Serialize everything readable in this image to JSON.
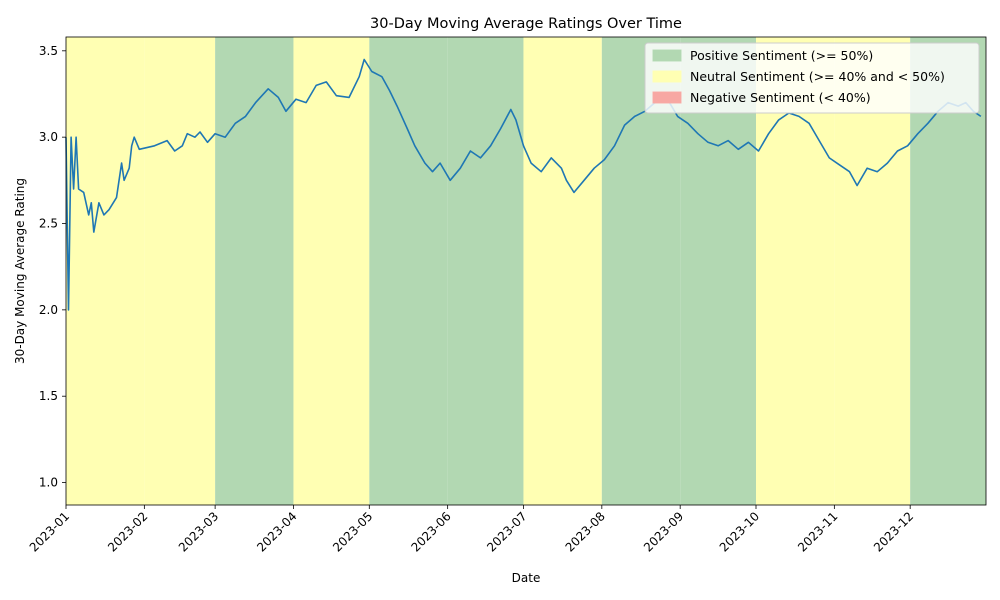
{
  "chart_data": {
    "type": "line",
    "title": "30-Day Moving Average Ratings Over Time",
    "xlabel": "Date",
    "ylabel": "30-Day Moving Average Rating",
    "xlim": [
      "2023-01-01",
      "2023-12-31"
    ],
    "ylim": [
      0.87,
      3.58
    ],
    "grid": false,
    "legend_position": "upper right",
    "x_ticks": [
      "2023-01",
      "2023-02",
      "2023-03",
      "2023-04",
      "2023-05",
      "2023-06",
      "2023-07",
      "2023-08",
      "2023-09",
      "2023-10",
      "2023-11",
      "2023-12"
    ],
    "y_ticks": [
      "1.0",
      "1.5",
      "2.0",
      "2.5",
      "3.0",
      "3.5"
    ],
    "legend": [
      {
        "label": "Positive Sentiment (>= 50%)",
        "color": "#b2d8b2"
      },
      {
        "label": "Neutral Sentiment (>= 40% and < 50%)",
        "color": "#ffffb3"
      },
      {
        "label": "Negative Sentiment (< 40%)",
        "color": "#f7a8a3"
      }
    ],
    "sentiment_bands": [
      {
        "month": "2023-01",
        "sentiment": "neutral"
      },
      {
        "month": "2023-02",
        "sentiment": "neutral"
      },
      {
        "month": "2023-03",
        "sentiment": "positive"
      },
      {
        "month": "2023-04",
        "sentiment": "neutral"
      },
      {
        "month": "2023-05",
        "sentiment": "positive"
      },
      {
        "month": "2023-06",
        "sentiment": "positive"
      },
      {
        "month": "2023-07",
        "sentiment": "neutral"
      },
      {
        "month": "2023-08",
        "sentiment": "positive"
      },
      {
        "month": "2023-09",
        "sentiment": "positive"
      },
      {
        "month": "2023-10",
        "sentiment": "neutral"
      },
      {
        "month": "2023-11",
        "sentiment": "neutral"
      },
      {
        "month": "2023-12",
        "sentiment": "positive"
      }
    ],
    "series": [
      {
        "color": "#1f77b4",
        "points": [
          [
            "2023-01-01",
            3.0
          ],
          [
            "2023-01-02",
            2.0
          ],
          [
            "2023-01-03",
            3.0
          ],
          [
            "2023-01-04",
            2.7
          ],
          [
            "2023-01-05",
            3.0
          ],
          [
            "2023-01-06",
            2.7
          ],
          [
            "2023-01-08",
            2.68
          ],
          [
            "2023-01-10",
            2.55
          ],
          [
            "2023-01-11",
            2.62
          ],
          [
            "2023-01-12",
            2.45
          ],
          [
            "2023-01-14",
            2.62
          ],
          [
            "2023-01-16",
            2.55
          ],
          [
            "2023-01-18",
            2.58
          ],
          [
            "2023-01-21",
            2.65
          ],
          [
            "2023-01-23",
            2.85
          ],
          [
            "2023-01-24",
            2.75
          ],
          [
            "2023-01-26",
            2.82
          ],
          [
            "2023-01-27",
            2.95
          ],
          [
            "2023-01-28",
            3.0
          ],
          [
            "2023-01-30",
            2.93
          ],
          [
            "2023-02-05",
            2.95
          ],
          [
            "2023-02-10",
            2.98
          ],
          [
            "2023-02-13",
            2.92
          ],
          [
            "2023-02-16",
            2.95
          ],
          [
            "2023-02-18",
            3.02
          ],
          [
            "2023-02-21",
            3.0
          ],
          [
            "2023-02-23",
            3.03
          ],
          [
            "2023-02-26",
            2.97
          ],
          [
            "2023-03-01",
            3.02
          ],
          [
            "2023-03-05",
            3.0
          ],
          [
            "2023-03-09",
            3.08
          ],
          [
            "2023-03-13",
            3.12
          ],
          [
            "2023-03-17",
            3.2
          ],
          [
            "2023-03-22",
            3.28
          ],
          [
            "2023-03-26",
            3.23
          ],
          [
            "2023-03-29",
            3.15
          ],
          [
            "2023-04-02",
            3.22
          ],
          [
            "2023-04-06",
            3.2
          ],
          [
            "2023-04-10",
            3.3
          ],
          [
            "2023-04-14",
            3.32
          ],
          [
            "2023-04-18",
            3.24
          ],
          [
            "2023-04-23",
            3.23
          ],
          [
            "2023-04-27",
            3.35
          ],
          [
            "2023-04-29",
            3.45
          ],
          [
            "2023-05-02",
            3.38
          ],
          [
            "2023-05-06",
            3.35
          ],
          [
            "2023-05-09",
            3.27
          ],
          [
            "2023-05-12",
            3.18
          ],
          [
            "2023-05-16",
            3.05
          ],
          [
            "2023-05-19",
            2.95
          ],
          [
            "2023-05-23",
            2.85
          ],
          [
            "2023-05-26",
            2.8
          ],
          [
            "2023-05-29",
            2.85
          ],
          [
            "2023-06-02",
            2.75
          ],
          [
            "2023-06-06",
            2.82
          ],
          [
            "2023-06-10",
            2.92
          ],
          [
            "2023-06-14",
            2.88
          ],
          [
            "2023-06-18",
            2.95
          ],
          [
            "2023-06-22",
            3.05
          ],
          [
            "2023-06-26",
            3.16
          ],
          [
            "2023-06-28",
            3.1
          ],
          [
            "2023-07-01",
            2.95
          ],
          [
            "2023-07-04",
            2.85
          ],
          [
            "2023-07-08",
            2.8
          ],
          [
            "2023-07-12",
            2.88
          ],
          [
            "2023-07-16",
            2.82
          ],
          [
            "2023-07-18",
            2.75
          ],
          [
            "2023-07-21",
            2.68
          ],
          [
            "2023-07-25",
            2.75
          ],
          [
            "2023-07-29",
            2.82
          ],
          [
            "2023-08-02",
            2.87
          ],
          [
            "2023-08-06",
            2.95
          ],
          [
            "2023-08-10",
            3.07
          ],
          [
            "2023-08-14",
            3.12
          ],
          [
            "2023-08-18",
            3.15
          ],
          [
            "2023-08-22",
            3.2
          ],
          [
            "2023-08-27",
            3.22
          ],
          [
            "2023-08-31",
            3.12
          ],
          [
            "2023-09-04",
            3.08
          ],
          [
            "2023-09-08",
            3.02
          ],
          [
            "2023-09-12",
            2.97
          ],
          [
            "2023-09-16",
            2.95
          ],
          [
            "2023-09-20",
            2.98
          ],
          [
            "2023-09-24",
            2.93
          ],
          [
            "2023-09-28",
            2.97
          ],
          [
            "2023-10-02",
            2.92
          ],
          [
            "2023-10-06",
            3.02
          ],
          [
            "2023-10-10",
            3.1
          ],
          [
            "2023-10-14",
            3.14
          ],
          [
            "2023-10-18",
            3.12
          ],
          [
            "2023-10-22",
            3.08
          ],
          [
            "2023-10-26",
            2.98
          ],
          [
            "2023-10-30",
            2.88
          ],
          [
            "2023-11-03",
            2.84
          ],
          [
            "2023-11-07",
            2.8
          ],
          [
            "2023-11-10",
            2.72
          ],
          [
            "2023-11-14",
            2.82
          ],
          [
            "2023-11-18",
            2.8
          ],
          [
            "2023-11-22",
            2.85
          ],
          [
            "2023-11-26",
            2.92
          ],
          [
            "2023-11-30",
            2.95
          ],
          [
            "2023-12-04",
            3.02
          ],
          [
            "2023-12-08",
            3.08
          ],
          [
            "2023-12-12",
            3.15
          ],
          [
            "2023-12-16",
            3.2
          ],
          [
            "2023-12-20",
            3.18
          ],
          [
            "2023-12-23",
            3.2
          ],
          [
            "2023-12-26",
            3.15
          ],
          [
            "2023-12-29",
            3.12
          ]
        ]
      }
    ]
  }
}
